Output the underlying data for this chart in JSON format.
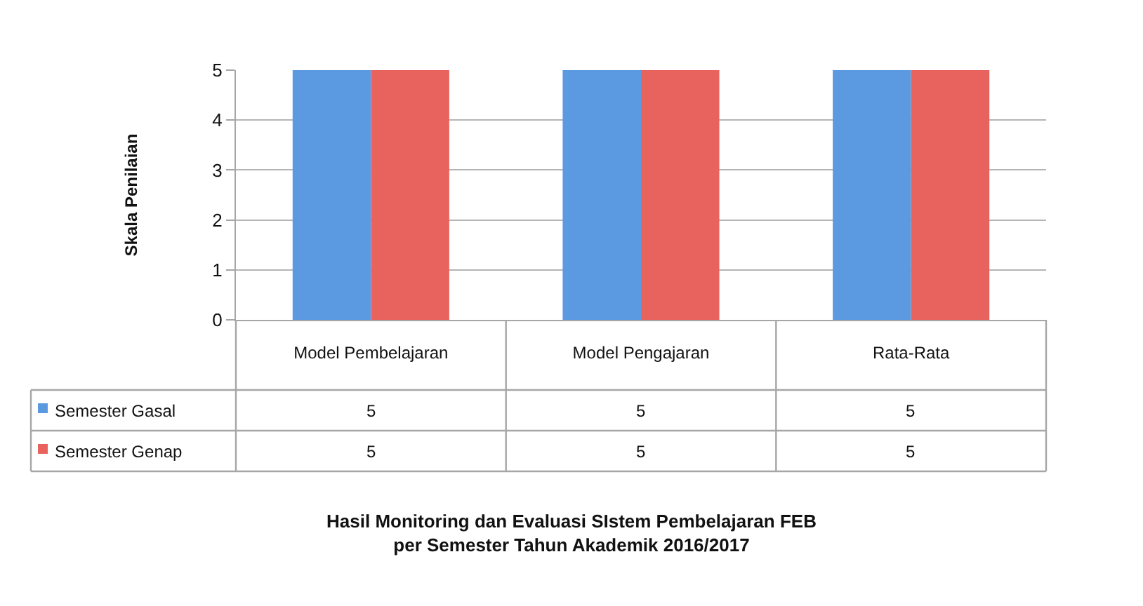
{
  "chart_data": {
    "type": "bar",
    "title": "Hasil Monitoring dan Evaluasi SIstem Pembelajaran FEB per Semester Tahun Akademik 2016/2017",
    "ylabel": "Skala Penilaian",
    "categories": [
      "Model Pembelajaran",
      "Model Pengajaran",
      "Rata-Rata"
    ],
    "series": [
      {
        "name": "Semester Gasal",
        "color": "#5b9ae0",
        "values": [
          5,
          5,
          5
        ]
      },
      {
        "name": "Semester Genap",
        "color": "#e8635e",
        "values": [
          5,
          5,
          5
        ]
      }
    ],
    "ylim": [
      0,
      5
    ],
    "yticks": [
      0,
      1,
      2,
      3,
      4,
      5
    ],
    "grid": "y",
    "legend": "bottom left",
    "data_labels": true
  }
}
